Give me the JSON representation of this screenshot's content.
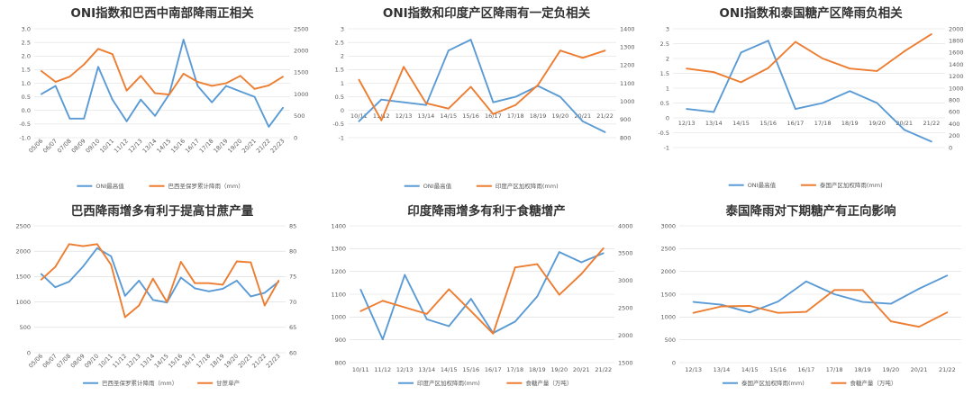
{
  "colors": {
    "blue": "#5b9bd5",
    "orange": "#ed7d31",
    "grid": "#d9d9d9",
    "text": "#595959",
    "title": "#333333"
  },
  "chart_data": [
    {
      "type": "line",
      "title": "ONI指数和巴西中南部降雨正相关",
      "categories": [
        "05/06",
        "06/07",
        "07/08",
        "08/09",
        "09/10",
        "10/11",
        "11/12",
        "12/13",
        "13/14",
        "14/15",
        "15/16",
        "16/17",
        "17/18",
        "18/19",
        "19/20",
        "20/21",
        "21/22",
        "22/23"
      ],
      "series": [
        {
          "name": "ONI最高值",
          "axis": "left",
          "values": [
            0.6,
            0.9,
            -0.3,
            -0.3,
            1.6,
            0.4,
            -0.4,
            0.4,
            -0.2,
            0.6,
            2.6,
            0.9,
            0.3,
            0.9,
            0.7,
            0.5,
            -0.6,
            0.1
          ]
        },
        {
          "name": "巴西圣保罗累计降雨（mm）",
          "axis": "right",
          "values": [
            1530,
            1280,
            1400,
            1680,
            2040,
            1920,
            1080,
            1420,
            1020,
            990,
            1470,
            1280,
            1190,
            1250,
            1420,
            1120,
            1200,
            1400
          ]
        }
      ],
      "left_ticks": [
        "3.0",
        "2.5",
        "2.0",
        "1.5",
        "1.0",
        "0.5",
        "0.0",
        "-0.5",
        "-1.0"
      ],
      "ylim_left": [
        -1.0,
        3.0
      ],
      "right_ticks": [
        "2500",
        "2000",
        "1500",
        "1000",
        "500",
        "0"
      ],
      "ylim_right": [
        0,
        2500
      ]
    },
    {
      "type": "line",
      "title": "ONI指数和印度产区降雨有一定负相关",
      "categories": [
        "10/11",
        "11/12",
        "12/13",
        "13/14",
        "14/15",
        "15/16",
        "16/17",
        "17/18",
        "18/19",
        "19/20",
        "20/21",
        "21/22"
      ],
      "series": [
        {
          "name": "ONI最高值",
          "axis": "left",
          "values": [
            -0.4,
            0.4,
            0.3,
            0.2,
            2.2,
            2.6,
            0.3,
            0.5,
            0.9,
            0.5,
            -0.4,
            -0.8
          ]
        },
        {
          "name": "印度产区加权降雨(mm)",
          "axis": "right",
          "values": [
            1120,
            895,
            1190,
            990,
            960,
            1080,
            930,
            980,
            1090,
            1280,
            1240,
            1280
          ]
        }
      ],
      "left_ticks": [
        "3",
        "2.5",
        "2",
        "1.5",
        "1",
        "0.5",
        "0",
        "-0.5",
        "-1"
      ],
      "ylim_left": [
        -1,
        3
      ],
      "right_ticks": [
        "1400",
        "1300",
        "1200",
        "1100",
        "1000",
        "900",
        "800"
      ],
      "ylim_right": [
        800,
        1400
      ]
    },
    {
      "type": "line",
      "title": "ONI指数和泰国糖产区降雨负相关",
      "categories": [
        "12/13",
        "13/14",
        "14/15",
        "15/16",
        "16/17",
        "17/18",
        "18/19",
        "19/20",
        "20/21",
        "21/22"
      ],
      "series": [
        {
          "name": "ONI最高值",
          "axis": "left",
          "values": [
            0.3,
            0.2,
            2.2,
            2.6,
            0.3,
            0.5,
            0.9,
            0.5,
            -0.4,
            -0.8
          ]
        },
        {
          "name": "泰国产区加权降雨(mm)",
          "axis": "right",
          "values": [
            1330,
            1270,
            1100,
            1340,
            1780,
            1500,
            1330,
            1290,
            1620,
            1910
          ]
        }
      ],
      "left_ticks": [
        "3",
        "2.5",
        "2",
        "1.5",
        "1",
        "0.5",
        "0",
        "-0.5",
        "-1"
      ],
      "ylim_left": [
        -1,
        3
      ],
      "right_ticks": [
        "2000",
        "1800",
        "1600",
        "1400",
        "1200",
        "1000",
        "800",
        "600",
        "400",
        "200",
        "0"
      ],
      "ylim_right": [
        0,
        2000
      ]
    },
    {
      "type": "line",
      "title": "巴西降雨增多有利于提高甘蔗产量",
      "categories": [
        "05/06",
        "06/07",
        "07/08",
        "08/09",
        "09/10",
        "10/11",
        "11/12",
        "12/13",
        "13/14",
        "14/15",
        "15/16",
        "16/17",
        "17/18",
        "18/19",
        "19/20",
        "20/21",
        "21/22",
        "22/23"
      ],
      "series": [
        {
          "name": "巴西圣保罗累计降雨（mm）",
          "axis": "left",
          "values": [
            1550,
            1290,
            1400,
            1700,
            2060,
            1900,
            1120,
            1420,
            1040,
            990,
            1480,
            1270,
            1210,
            1260,
            1420,
            1110,
            1180,
            1400
          ]
        },
        {
          "name": "甘蔗单产",
          "axis": "right",
          "values": [
            74.4,
            76.9,
            81.4,
            81.0,
            81.4,
            77.3,
            67.0,
            69.3,
            74.6,
            70.0,
            77.9,
            73.7,
            73.7,
            73.4,
            78.0,
            77.8,
            69.3,
            74.2
          ]
        }
      ],
      "left_ticks": [
        "2500",
        "2000",
        "1500",
        "1000",
        "500",
        "0"
      ],
      "ylim_left": [
        0,
        2500
      ],
      "right_ticks": [
        "85",
        "80",
        "75",
        "70",
        "65",
        "60"
      ],
      "ylim_right": [
        60,
        85
      ]
    },
    {
      "type": "line",
      "title": "印度降雨增多有利于食糖增产",
      "categories": [
        "10/11",
        "11/12",
        "12/13",
        "13/14",
        "14/15",
        "15/16",
        "16/17",
        "17/18",
        "18/19",
        "19/20",
        "20/21",
        "21/22"
      ],
      "series": [
        {
          "name": "印度产区加权降雨(mm)",
          "axis": "left",
          "values": [
            1120,
            902,
            1185,
            990,
            960,
            1080,
            930,
            980,
            1090,
            1285,
            1240,
            1280
          ]
        },
        {
          "name": "食糖产量（万吨）",
          "axis": "right",
          "values": [
            2440,
            2630,
            2510,
            2390,
            2840,
            2440,
            2030,
            3240,
            3300,
            2740,
            3120,
            3590
          ]
        }
      ],
      "left_ticks": [
        "1400",
        "1300",
        "1200",
        "1100",
        "1000",
        "900",
        "800"
      ],
      "ylim_left": [
        800,
        1400
      ],
      "right_ticks": [
        "4000",
        "3500",
        "3000",
        "2500",
        "2000",
        "1500"
      ],
      "ylim_right": [
        1500,
        4000
      ]
    },
    {
      "type": "line",
      "title": "泰国降雨对下期糖产有正向影响",
      "categories": [
        "12/13",
        "13/14",
        "14/15",
        "15/16",
        "16/17",
        "17/18",
        "18/19",
        "19/20",
        "20/21",
        "21/22"
      ],
      "series": [
        {
          "name": "泰国产区加权降雨(mm)",
          "axis": "left",
          "values": [
            1330,
            1270,
            1100,
            1340,
            1780,
            1500,
            1330,
            1290,
            1620,
            1910
          ]
        },
        {
          "name": "食糖产量（万吨）",
          "axis": "right",
          "values": [
            1000,
            1130,
            1140,
            1000,
            1020,
            1460,
            1460,
            830,
            720,
            1010
          ]
        }
      ],
      "left_ticks": [
        "3000",
        "2500",
        "2000",
        "1500",
        "1000",
        "500",
        "0"
      ],
      "ylim_left": [
        0,
        3000
      ],
      "right_ticks": [],
      "ylim_right": [
        0,
        2750
      ]
    }
  ]
}
